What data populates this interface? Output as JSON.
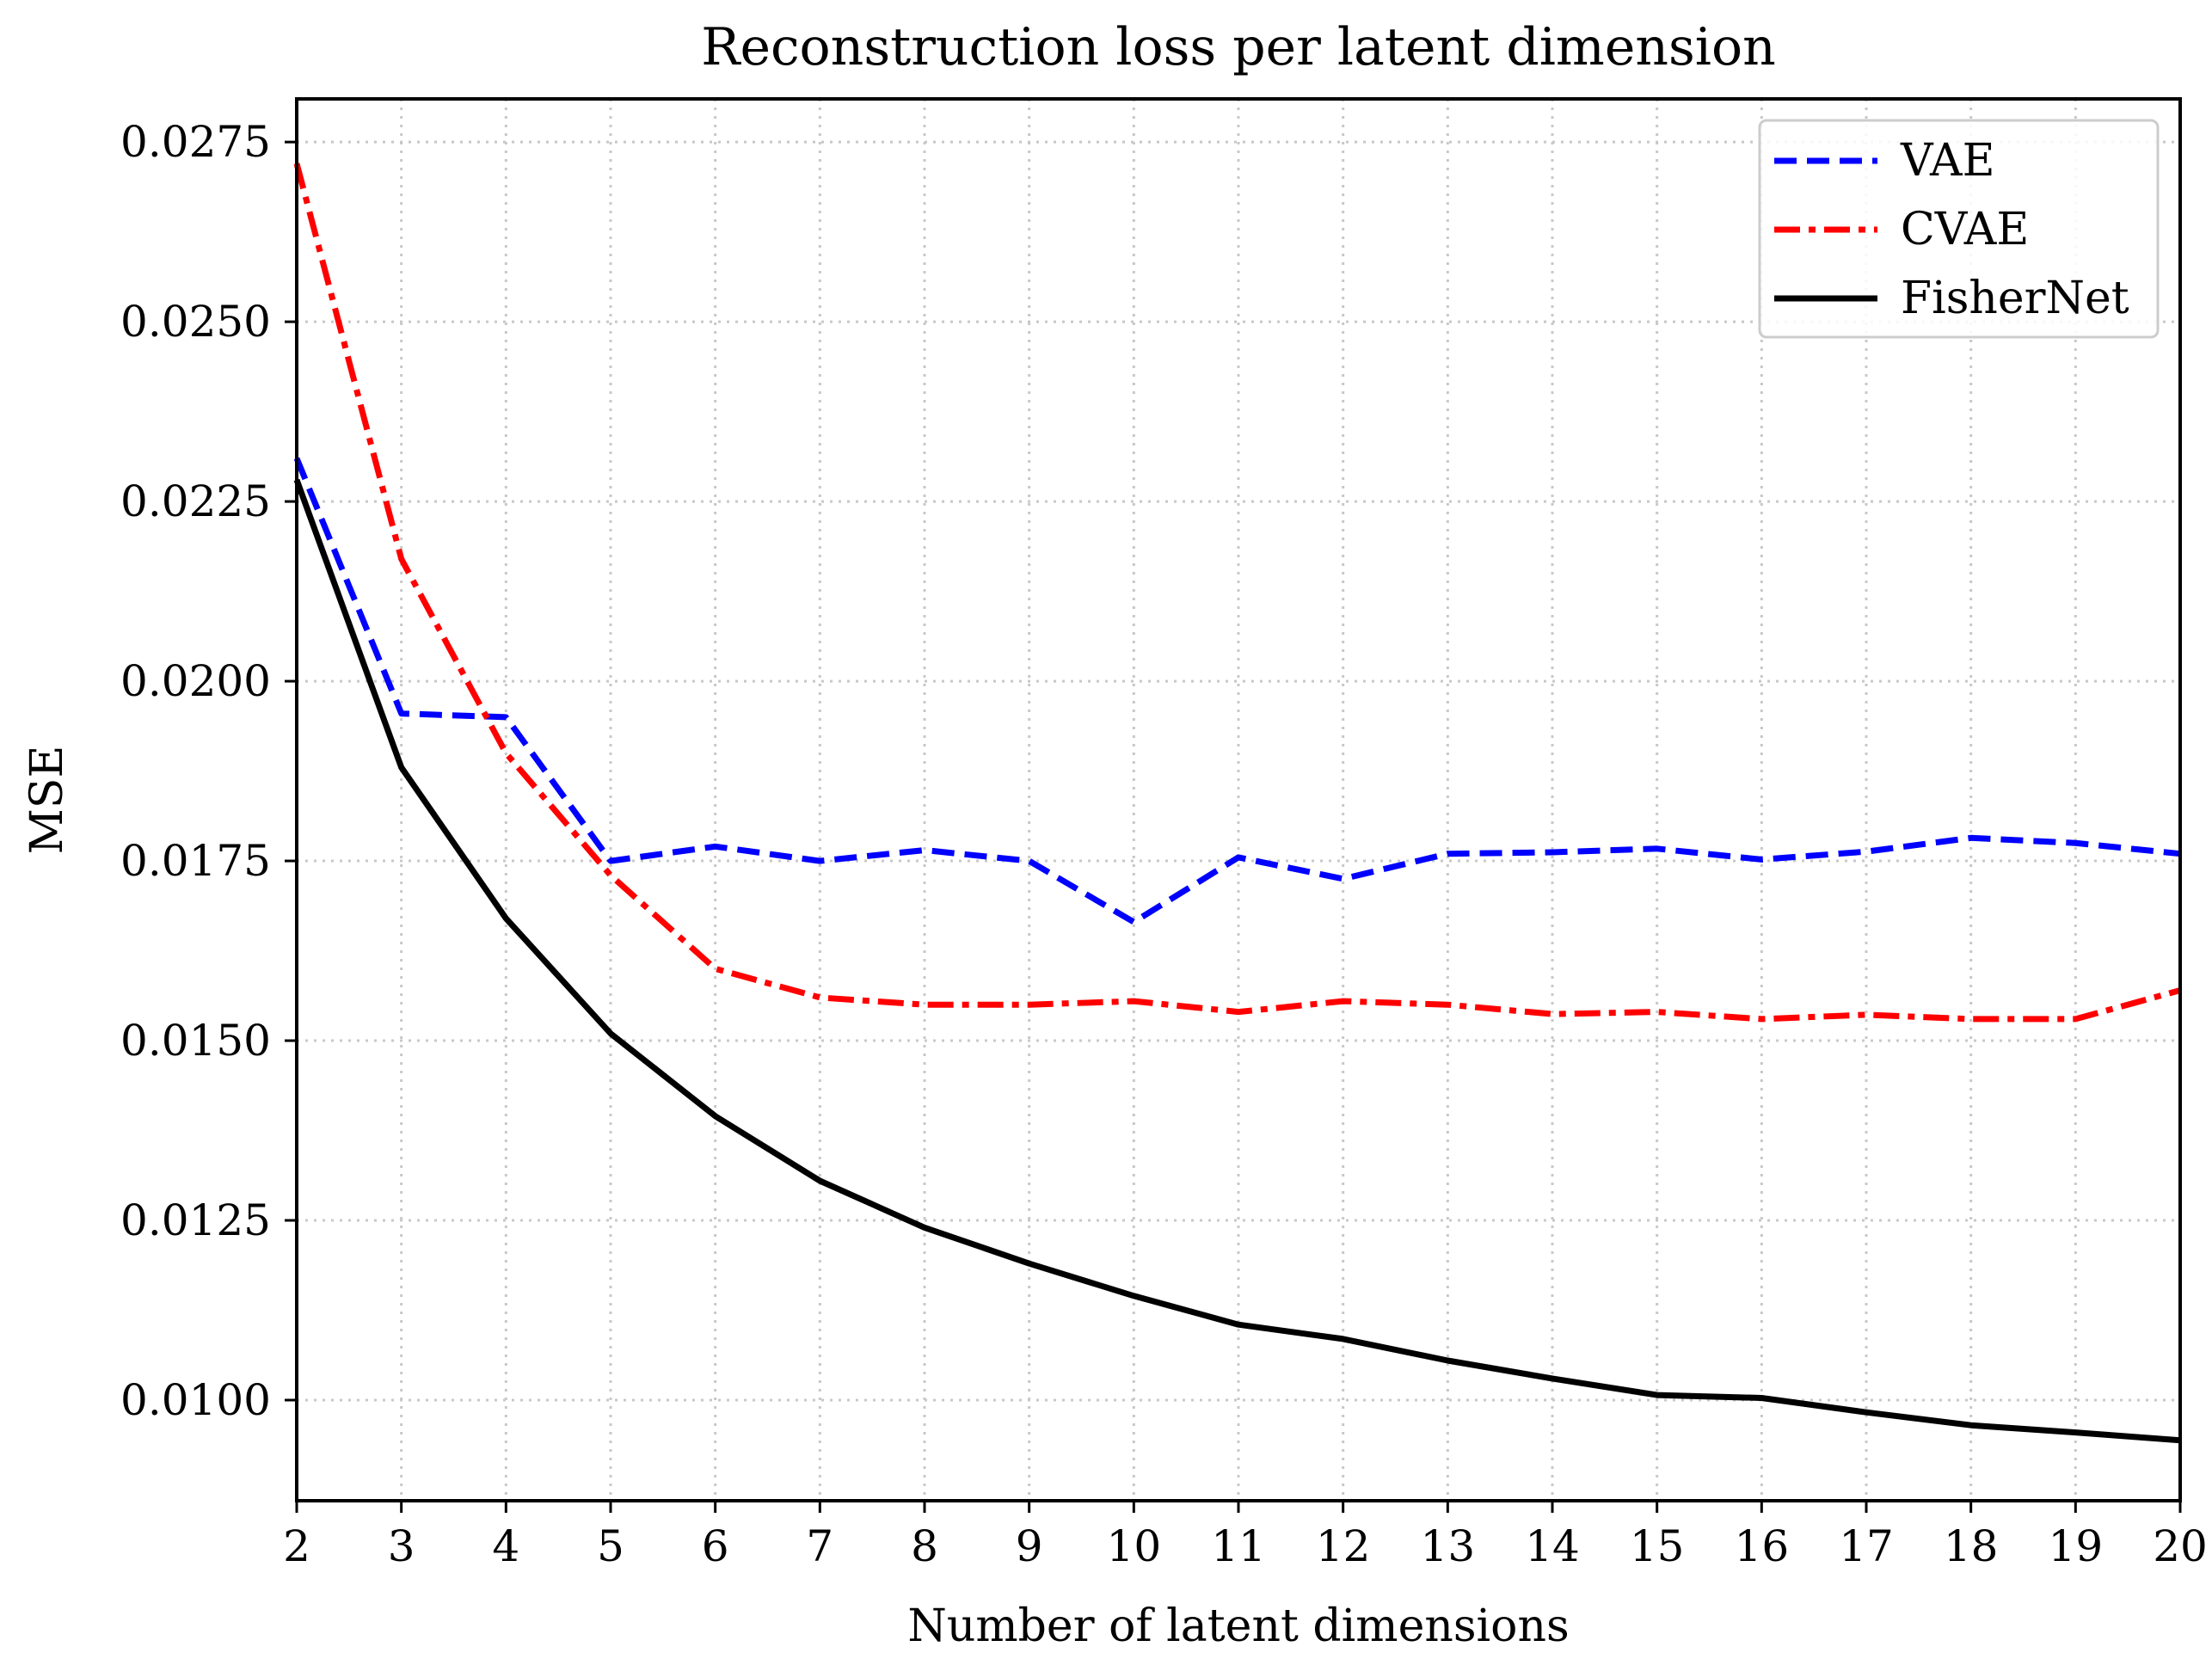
{
  "chart_data": {
    "type": "line",
    "title": "Reconstruction loss per latent dimension",
    "xlabel": "Number of latent dimensions",
    "ylabel": "MSE",
    "xlim": [
      2,
      20
    ],
    "ylim": [
      0.0086,
      0.0281
    ],
    "xticks": [
      2,
      3,
      4,
      5,
      6,
      7,
      8,
      9,
      10,
      11,
      12,
      13,
      14,
      15,
      16,
      17,
      18,
      19,
      20
    ],
    "yticks": [
      0.01,
      0.0125,
      0.015,
      0.0175,
      0.02,
      0.0225,
      0.025,
      0.0275
    ],
    "ytick_labels": [
      "0.0100",
      "0.0125",
      "0.0150",
      "0.0175",
      "0.0200",
      "0.0225",
      "0.0250",
      "0.0275"
    ],
    "grid": true,
    "legend_position": "top-right",
    "x": [
      2,
      3,
      4,
      5,
      6,
      7,
      8,
      9,
      10,
      11,
      12,
      13,
      14,
      15,
      16,
      17,
      18,
      19,
      20
    ],
    "series": [
      {
        "name": "VAE",
        "color": "#0000ff",
        "style": "dashed",
        "values": [
          0.0231,
          0.01955,
          0.0195,
          0.0175,
          0.0177,
          0.0175,
          0.01765,
          0.0175,
          0.01665,
          0.01755,
          0.01725,
          0.0176,
          0.01762,
          0.01767,
          0.01752,
          0.01763,
          0.01782,
          0.01775,
          0.0176
        ]
      },
      {
        "name": "CVAE",
        "color": "#ff0000",
        "style": "dashdot",
        "values": [
          0.0272,
          0.0217,
          0.019,
          0.0173,
          0.016,
          0.0156,
          0.0155,
          0.0155,
          0.01555,
          0.0154,
          0.01555,
          0.0155,
          0.01537,
          0.0154,
          0.0153,
          0.01536,
          0.0153,
          0.0153,
          0.0157
        ]
      },
      {
        "name": "FisherNet",
        "color": "#000000",
        "style": "solid",
        "values": [
          0.0228,
          0.0188,
          0.0167,
          0.0151,
          0.01395,
          0.01305,
          0.0124,
          0.0119,
          0.01145,
          0.01105,
          0.01085,
          0.01055,
          0.0103,
          0.01007,
          0.01003,
          0.00983,
          0.00965,
          0.00955,
          0.00944
        ]
      }
    ]
  }
}
